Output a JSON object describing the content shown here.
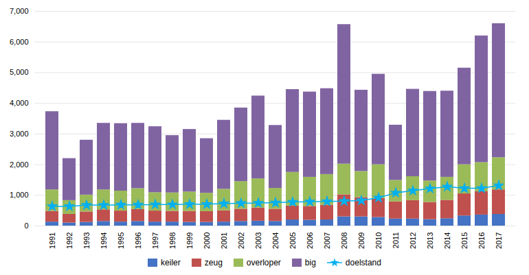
{
  "chart_data": {
    "type": "bar",
    "stacked": true,
    "categories": [
      "1991",
      "1992",
      "1993",
      "1994",
      "1995",
      "1996",
      "1997",
      "1998",
      "1999",
      "2000",
      "2001",
      "2002",
      "2003",
      "2004",
      "2005",
      "2006",
      "2007",
      "2008",
      "2009",
      "2010",
      "2011",
      "2012",
      "2013",
      "2014",
      "2015",
      "2016",
      "2017"
    ],
    "series": [
      {
        "name": "keiler",
        "color": "#4472C4",
        "values": [
          130,
          100,
          120,
          150,
          130,
          150,
          130,
          130,
          120,
          120,
          130,
          150,
          160,
          150,
          200,
          190,
          200,
          300,
          300,
          280,
          230,
          230,
          210,
          240,
          330,
          360,
          380
        ]
      },
      {
        "name": "zeug",
        "color": "#C0504D",
        "values": [
          350,
          280,
          340,
          380,
          360,
          390,
          360,
          350,
          360,
          350,
          370,
          400,
          430,
          400,
          450,
          450,
          480,
          720,
          630,
          620,
          560,
          600,
          560,
          600,
          720,
          760,
          800
        ]
      },
      {
        "name": "overloper",
        "color": "#9BBB59",
        "values": [
          700,
          450,
          550,
          650,
          650,
          680,
          600,
          600,
          630,
          600,
          700,
          900,
          950,
          680,
          1100,
          950,
          1000,
          1000,
          850,
          1100,
          700,
          780,
          700,
          750,
          950,
          950,
          1050
        ]
      },
      {
        "name": "big",
        "color": "#8064A2",
        "values": [
          2550,
          1370,
          1790,
          2170,
          2200,
          2130,
          2150,
          1870,
          2040,
          1780,
          2250,
          2400,
          2700,
          2050,
          2700,
          2780,
          2800,
          4550,
          2650,
          2950,
          1800,
          2850,
          2920,
          2810,
          3150,
          4130,
          4370
        ]
      },
      {
        "name": "doelstand",
        "type": "line",
        "marker": "star",
        "color": "#00B0F0",
        "values": [
          640,
          640,
          680,
          680,
          690,
          690,
          700,
          700,
          710,
          710,
          730,
          740,
          750,
          760,
          780,
          790,
          800,
          810,
          830,
          920,
          1080,
          1150,
          1220,
          1280,
          1230,
          1230,
          1320
        ]
      }
    ],
    "ylim": [
      0,
      7000
    ],
    "yticks": [
      0,
      1000,
      2000,
      3000,
      4000,
      5000,
      6000,
      7000
    ],
    "grid": true,
    "legend": "bottom"
  }
}
